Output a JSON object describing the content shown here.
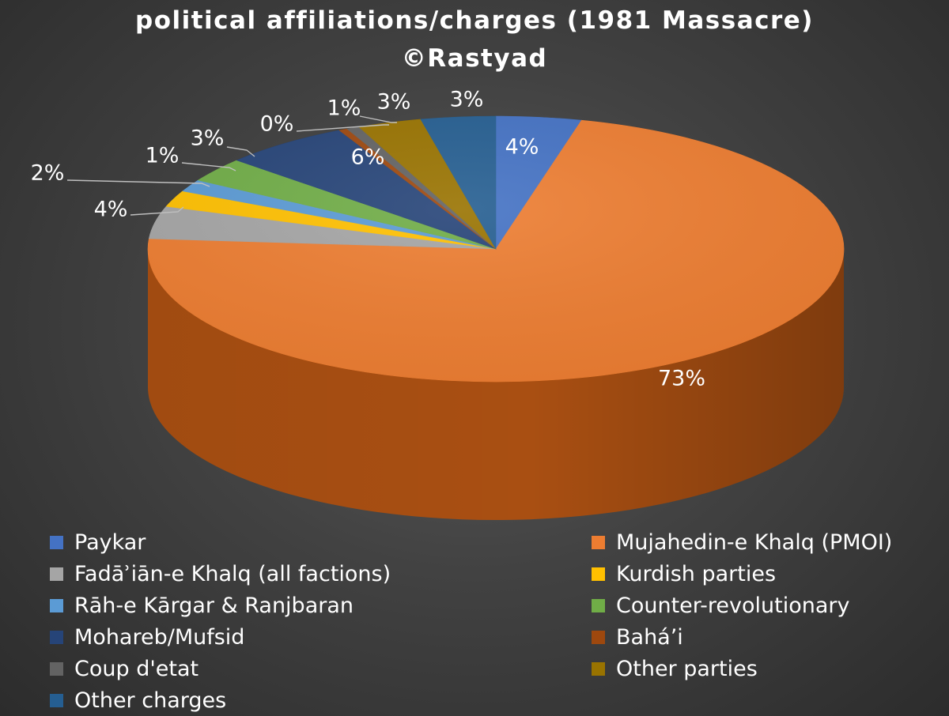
{
  "chart_data": {
    "type": "pie",
    "title": "political affiliations/charges (1981 Massacre)",
    "subtitle": "©Rastyad",
    "legend_position": "bottom",
    "slices": [
      {
        "name": "Paykar",
        "value": 4,
        "label": "4%",
        "color": "#4472C4",
        "side": "#2f5597"
      },
      {
        "name": "Mujahedin-e Khalq (PMOI)",
        "value": 73,
        "label": "73%",
        "color": "#ED7D31",
        "side": "#a94f12"
      },
      {
        "name": "Fadāʾiān-e Khalq (all factions)",
        "value": 4,
        "label": "4%",
        "color": "#A5A5A5",
        "side": "#6d6d6d"
      },
      {
        "name": "Kurdish parties",
        "value": 2,
        "label": "2%",
        "color": "#FFC000",
        "side": "#b38600"
      },
      {
        "name": "Rāh-e Kārgar & Ranjbaran",
        "value": 1.5,
        "label": "1%",
        "color": "#5B9BD5",
        "side": "#3a6f9f"
      },
      {
        "name": "Counter-revolutionary",
        "value": 3,
        "label": "3%",
        "color": "#70AD47",
        "side": "#4a7a2c"
      },
      {
        "name": "Mohareb/Mufsid",
        "value": 6,
        "label": "6%",
        "color": "#264478",
        "side": "#16294a"
      },
      {
        "name": "Bahá’i",
        "value": 0.4,
        "label": "0%",
        "color": "#9E480E",
        "side": "#6b2f08"
      },
      {
        "name": "Coup d'etat",
        "value": 0.6,
        "label": "1%",
        "color": "#636363",
        "side": "#404040"
      },
      {
        "name": "Other parties",
        "value": 3,
        "label": "3%",
        "color": "#997300",
        "side": "#654c00"
      },
      {
        "name": "Other charges",
        "value": 3.5,
        "label": "3%",
        "color": "#255E91",
        "side": "#163a5b"
      }
    ]
  }
}
